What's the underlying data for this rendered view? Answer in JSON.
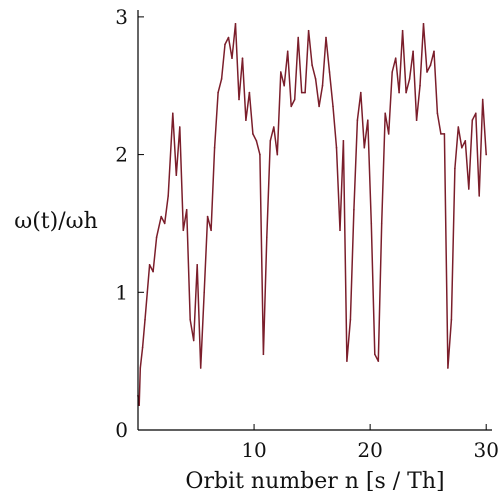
{
  "chart_data": {
    "type": "line",
    "title": "",
    "xlabel": "Orbit number n [s / Th]",
    "ylabel": "ω(t)/ωh",
    "xlim": [
      0,
      30.5
    ],
    "ylim": [
      0,
      3.05
    ],
    "x_ticks": [
      10,
      20,
      30
    ],
    "x_tick_labels": [
      "10",
      "20",
      "30"
    ],
    "y_ticks": [
      0,
      1,
      2,
      3
    ],
    "y_tick_labels": [
      "0",
      "1",
      "2",
      "3"
    ],
    "grid": false,
    "legend": "none",
    "series": [
      {
        "color": "#7b1e2b",
        "x": [
          0.0,
          0.1,
          0.2,
          0.4,
          0.6,
          0.8,
          1.0,
          1.3,
          1.6,
          2.0,
          2.3,
          2.6,
          3.0,
          3.3,
          3.6,
          3.9,
          4.2,
          4.5,
          4.8,
          5.1,
          5.4,
          5.7,
          6.0,
          6.3,
          6.6,
          6.9,
          7.2,
          7.5,
          7.8,
          8.1,
          8.4,
          8.7,
          9.0,
          9.3,
          9.6,
          9.9,
          10.2,
          10.5,
          10.8,
          11.1,
          11.4,
          11.7,
          12.0,
          12.3,
          12.6,
          12.9,
          13.2,
          13.5,
          13.8,
          14.1,
          14.4,
          14.7,
          15.0,
          15.3,
          15.6,
          15.9,
          16.2,
          16.5,
          16.8,
          17.1,
          17.4,
          17.7,
          18.0,
          18.3,
          18.6,
          18.9,
          19.2,
          19.5,
          19.8,
          20.1,
          20.4,
          20.7,
          21.0,
          21.3,
          21.6,
          21.9,
          22.2,
          22.5,
          22.8,
          23.1,
          23.4,
          23.7,
          24.0,
          24.3,
          24.6,
          24.9,
          25.2,
          25.5,
          25.8,
          26.1,
          26.4,
          26.7,
          27.0,
          27.3,
          27.6,
          27.9,
          28.2,
          28.5,
          28.8,
          29.1,
          29.4,
          29.7,
          30.0
        ],
        "values": [
          0.25,
          0.18,
          0.45,
          0.6,
          0.8,
          1.0,
          1.2,
          1.15,
          1.4,
          1.55,
          1.5,
          1.7,
          2.3,
          1.85,
          2.2,
          1.45,
          1.6,
          0.8,
          0.65,
          1.2,
          0.45,
          1.0,
          1.55,
          1.45,
          2.05,
          2.45,
          2.55,
          2.8,
          2.85,
          2.7,
          2.95,
          2.4,
          2.7,
          2.25,
          2.45,
          2.15,
          2.1,
          2.0,
          0.55,
          1.4,
          2.1,
          2.2,
          2.0,
          2.6,
          2.5,
          2.75,
          2.35,
          2.4,
          2.85,
          2.45,
          2.45,
          2.9,
          2.65,
          2.55,
          2.35,
          2.5,
          2.85,
          2.6,
          2.35,
          2.05,
          1.45,
          2.1,
          0.5,
          0.8,
          1.6,
          2.25,
          2.45,
          2.05,
          2.25,
          1.5,
          0.55,
          0.5,
          1.5,
          2.3,
          2.15,
          2.6,
          2.7,
          2.45,
          2.9,
          2.45,
          2.55,
          2.75,
          2.25,
          2.5,
          2.95,
          2.6,
          2.65,
          2.75,
          2.3,
          2.15,
          2.15,
          0.45,
          0.8,
          1.9,
          2.2,
          2.05,
          2.1,
          1.75,
          2.25,
          2.3,
          1.7,
          2.4,
          2.0
        ]
      }
    ]
  }
}
